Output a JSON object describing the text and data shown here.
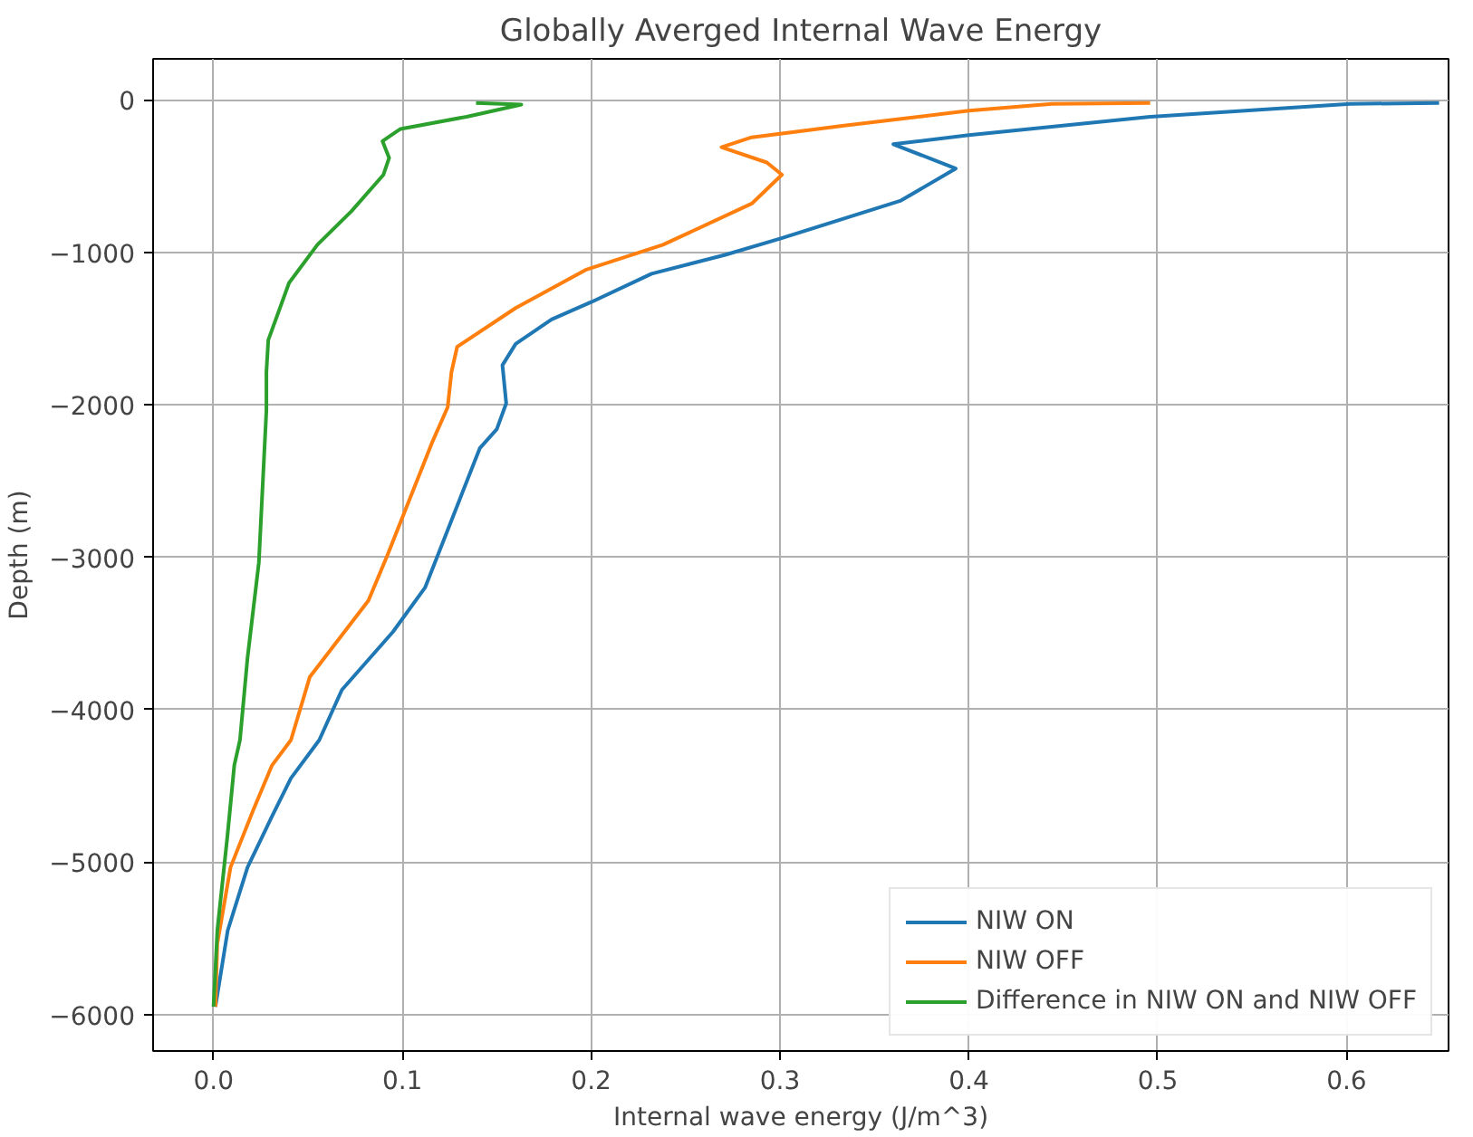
{
  "chart_data": {
    "type": "line",
    "title": "Globally Averged Internal Wave Energy",
    "xlabel": "Internal wave energy (J/m^3)",
    "ylabel": "Depth (m)",
    "xlim": [
      -0.032,
      0.654
    ],
    "ylim": [
      -6240,
      270
    ],
    "xticks": [
      {
        "value": 0,
        "label": "0.0"
      },
      {
        "value": 0.1,
        "label": "0.1"
      },
      {
        "value": 0.2,
        "label": "0.2"
      },
      {
        "value": 0.3,
        "label": "0.3"
      },
      {
        "value": 0.4,
        "label": "0.4"
      },
      {
        "value": 0.5,
        "label": "0.5"
      },
      {
        "value": 0.6,
        "label": "0.6"
      }
    ],
    "yticks": [
      {
        "value": 0,
        "label": "0"
      },
      {
        "value": -1000,
        "label": "−1000"
      },
      {
        "value": -2000,
        "label": "−2000"
      },
      {
        "value": -3000,
        "label": "−3000"
      },
      {
        "value": -4000,
        "label": "−4000"
      },
      {
        "value": -5000,
        "label": "−5000"
      },
      {
        "value": -6000,
        "label": "−6000"
      }
    ],
    "grid": true,
    "legend": "bottom right",
    "line_style": "solid",
    "marker": "none",
    "series": [
      {
        "name": "NIW ON",
        "color": "#1f77b4",
        "x": [
          0.649,
          0.602,
          0.496,
          0.4,
          0.36,
          0.393,
          0.364,
          0.3,
          0.271,
          0.232,
          0.2,
          0.179,
          0.16,
          0.153,
          0.155,
          0.15,
          0.141,
          0.112,
          0.095,
          0.068,
          0.056,
          0.041,
          0.031,
          0.018,
          0.0075,
          0.001
        ],
        "values": [
          -20,
          -25,
          -110,
          -230,
          -290,
          -450,
          -660,
          -910,
          -1016,
          -1140,
          -1326,
          -1440,
          -1600,
          -1740,
          -1990,
          -2160,
          -2285,
          -3200,
          -3490,
          -3870,
          -4200,
          -4450,
          -4700,
          -5035,
          -5450,
          -5950
        ]
      },
      {
        "name": "NIW OFF",
        "color": "#ff7f0e",
        "x": [
          0.496,
          0.444,
          0.4,
          0.333,
          0.285,
          0.269,
          0.293,
          0.301,
          0.285,
          0.238,
          0.197,
          0.16,
          0.129,
          0.126,
          0.124,
          0.116,
          0.092,
          0.082,
          0.051,
          0.041,
          0.031,
          0.021,
          0.009,
          0.002,
          0.001
        ],
        "values": [
          -20,
          -25,
          -70,
          -170,
          -245,
          -310,
          -410,
          -490,
          -680,
          -950,
          -1115,
          -1365,
          -1620,
          -1785,
          -2015,
          -2240,
          -2990,
          -3285,
          -3785,
          -4200,
          -4365,
          -4660,
          -5035,
          -5535,
          -5950
        ]
      },
      {
        "name": "Difference in NIW ON and NIW OFF",
        "color": "#2ca02c",
        "x": [
          0.139,
          0.163,
          0.134,
          0.099,
          0.0895,
          0.093,
          0.09,
          0.073,
          0.055,
          0.04,
          0.029,
          0.028,
          0.028,
          0.024,
          0.018,
          0.014,
          0.011,
          0.0074,
          0.002,
          0.0
        ],
        "values": [
          -20,
          -30,
          -110,
          -190,
          -270,
          -380,
          -490,
          -730,
          -950,
          -1200,
          -1575,
          -1785,
          -2035,
          -3035,
          -3660,
          -4200,
          -4365,
          -4825,
          -5450,
          -5950
        ]
      }
    ]
  }
}
